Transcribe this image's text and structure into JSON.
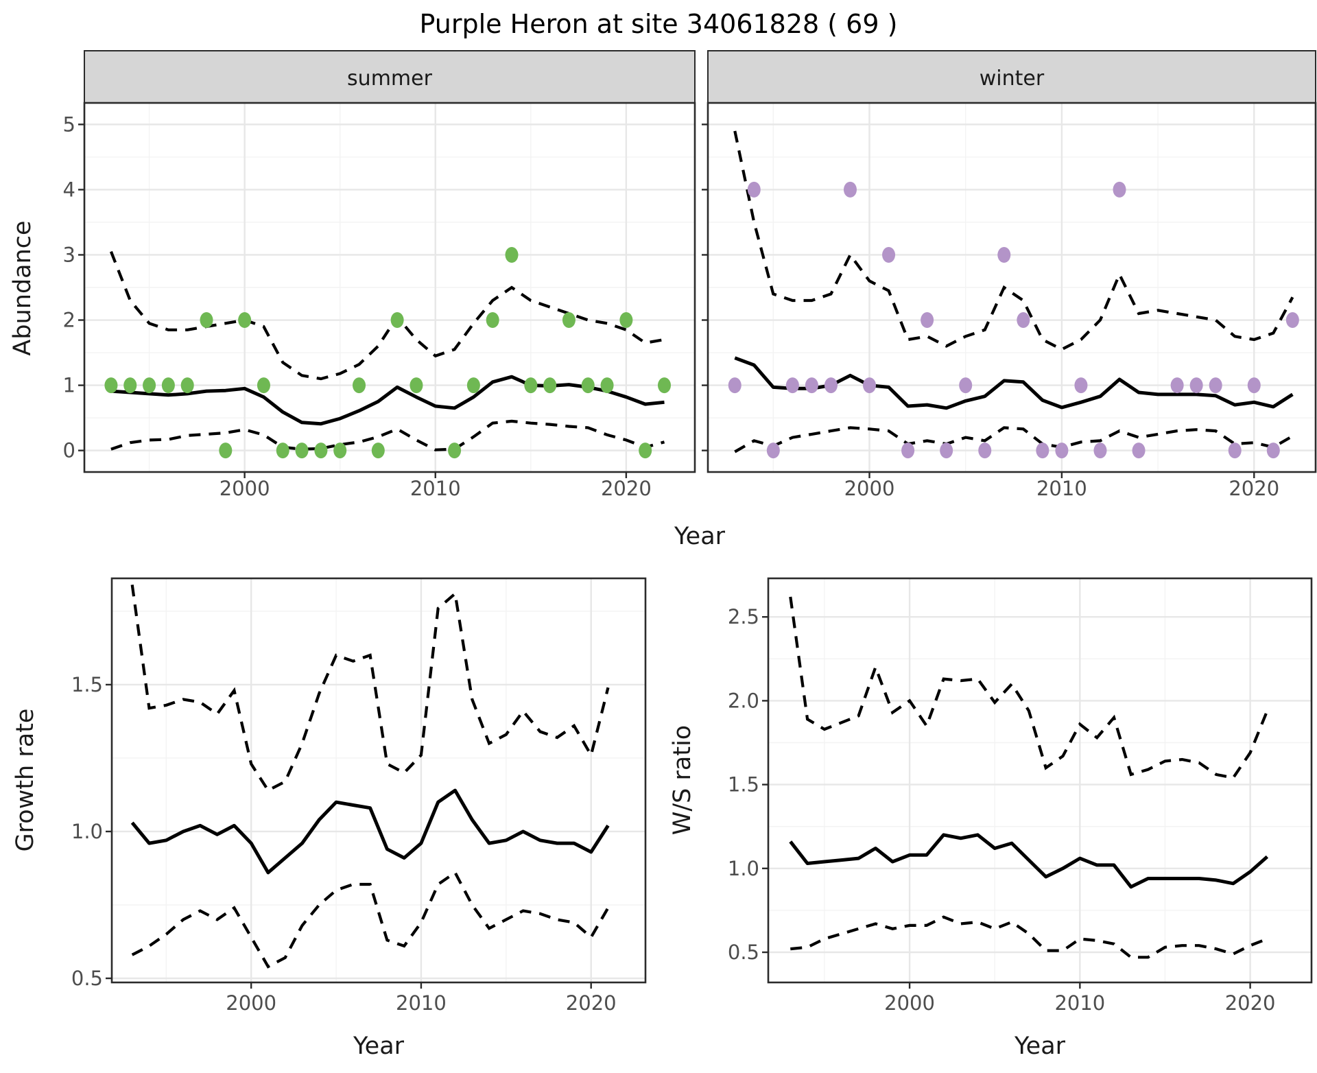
{
  "title": "Purple Heron at site 34061828 ( 69 )",
  "facets": [
    {
      "label": "summer"
    },
    {
      "label": "winter"
    }
  ],
  "axes": {
    "abundance_label": "Abundance",
    "year_label": "Year",
    "growth_label": "Growth rate",
    "ws_label": "W/S ratio"
  },
  "colors": {
    "summer_point": "#6fb853",
    "winter_point": "#b394c8",
    "line": "#000000",
    "grid_major": "#e7e7e7",
    "grid_minor": "#f3f3f3",
    "strip_bg": "#d6d6d6",
    "panel_border": "#2b2b2b",
    "axis_text": "#4d4d4d"
  },
  "chart_data": [
    {
      "id": "abundance_summer",
      "type": "scatter",
      "title": "summer",
      "xlabel": "Year",
      "ylabel": "Abundance",
      "xlim": [
        1991.6,
        2023.6
      ],
      "ylim": [
        -0.33,
        5.33
      ],
      "x_ticks": [
        2000,
        2010,
        2020
      ],
      "x_tick_labels": [
        "2000",
        "2010",
        "2020"
      ],
      "x_minor": [
        1995,
        2005,
        2015
      ],
      "y_ticks": [
        0,
        1,
        2,
        3,
        4,
        5
      ],
      "y_tick_labels": [
        "0",
        "1",
        "2",
        "3",
        "4",
        "5"
      ],
      "y_minor": [
        0.5,
        1.5,
        2.5,
        3.5,
        4.5
      ],
      "years": [
        1993,
        1994,
        1995,
        1996,
        1997,
        1998,
        1999,
        2000,
        2001,
        2002,
        2003,
        2004,
        2005,
        2006,
        2007,
        2008,
        2009,
        2010,
        2011,
        2012,
        2013,
        2014,
        2015,
        2016,
        2017,
        2018,
        2019,
        2020,
        2021,
        2022
      ],
      "mean": [
        0.91,
        0.89,
        0.87,
        0.85,
        0.87,
        0.91,
        0.92,
        0.95,
        0.82,
        0.59,
        0.43,
        0.41,
        0.49,
        0.61,
        0.75,
        0.97,
        0.82,
        0.68,
        0.65,
        0.82,
        1.05,
        1.13,
        1.0,
        0.99,
        1.01,
        0.97,
        0.91,
        0.82,
        0.71,
        0.74
      ],
      "upper": [
        3.05,
        2.3,
        1.95,
        1.85,
        1.85,
        1.9,
        1.95,
        2.0,
        1.9,
        1.35,
        1.15,
        1.1,
        1.18,
        1.32,
        1.6,
        2.05,
        1.7,
        1.45,
        1.55,
        1.95,
        2.3,
        2.5,
        2.3,
        2.2,
        2.1,
        2.0,
        1.95,
        1.85,
        1.65,
        1.7
      ],
      "lower": [
        0.02,
        0.12,
        0.16,
        0.17,
        0.23,
        0.25,
        0.27,
        0.32,
        0.24,
        0.05,
        0.02,
        0.03,
        0.09,
        0.13,
        0.21,
        0.33,
        0.16,
        0.01,
        0.02,
        0.21,
        0.42,
        0.45,
        0.42,
        0.4,
        0.37,
        0.35,
        0.24,
        0.16,
        0.05,
        0.13
      ],
      "obs_years": [
        1993,
        1994,
        1995,
        1996,
        1997,
        1998,
        1999,
        2000,
        2001,
        2002,
        2003,
        2004,
        2005,
        2006,
        2007,
        2008,
        2009,
        2011,
        2012,
        2013,
        2014,
        2015,
        2016,
        2017,
        2018,
        2019,
        2020,
        2021,
        2022
      ],
      "obs_values": [
        1,
        1,
        1,
        1,
        1,
        2,
        0,
        2,
        1,
        0,
        0,
        0,
        0,
        1,
        0,
        2,
        1,
        0,
        1,
        2,
        3,
        1,
        1,
        2,
        1,
        1,
        2,
        0,
        1
      ],
      "point_color": "#6fb853"
    },
    {
      "id": "abundance_winter",
      "type": "scatter",
      "title": "winter",
      "xlabel": "Year",
      "ylabel": "Abundance",
      "xlim": [
        1991.6,
        2023.2
      ],
      "ylim": [
        -0.33,
        5.33
      ],
      "x_ticks": [
        2000,
        2010,
        2020
      ],
      "x_tick_labels": [
        "2000",
        "2010",
        "2020"
      ],
      "x_minor": [
        1995,
        2005,
        2015
      ],
      "y_ticks": [
        0,
        1,
        2,
        3,
        4,
        5
      ],
      "y_tick_labels": [
        "0",
        "1",
        "2",
        "3",
        "4",
        "5"
      ],
      "y_minor": [
        0.5,
        1.5,
        2.5,
        3.5,
        4.5
      ],
      "years": [
        1993,
        1994,
        1995,
        1996,
        1997,
        1998,
        1999,
        2000,
        2001,
        2002,
        2003,
        2004,
        2005,
        2006,
        2007,
        2008,
        2009,
        2010,
        2011,
        2012,
        2013,
        2014,
        2015,
        2016,
        2017,
        2018,
        2019,
        2020,
        2021,
        2022
      ],
      "mean": [
        1.42,
        1.31,
        0.97,
        0.95,
        0.95,
        1.0,
        1.15,
        1.0,
        0.97,
        0.68,
        0.7,
        0.65,
        0.76,
        0.83,
        1.07,
        1.05,
        0.77,
        0.66,
        0.74,
        0.83,
        1.09,
        0.89,
        0.86,
        0.86,
        0.86,
        0.84,
        0.7,
        0.74,
        0.67,
        0.86
      ],
      "upper": [
        4.9,
        3.5,
        2.4,
        2.3,
        2.3,
        2.4,
        3.0,
        2.6,
        2.45,
        1.7,
        1.75,
        1.6,
        1.75,
        1.85,
        2.5,
        2.3,
        1.7,
        1.55,
        1.7,
        2.0,
        2.7,
        2.1,
        2.15,
        2.1,
        2.05,
        2.0,
        1.75,
        1.7,
        1.8,
        2.35
      ],
      "lower": [
        -0.02,
        0.15,
        0.07,
        0.2,
        0.25,
        0.3,
        0.35,
        0.33,
        0.3,
        0.1,
        0.15,
        0.1,
        0.2,
        0.15,
        0.35,
        0.33,
        0.1,
        0.05,
        0.13,
        0.15,
        0.3,
        0.2,
        0.25,
        0.3,
        0.32,
        0.3,
        0.1,
        0.12,
        0.05,
        0.22
      ],
      "obs_years": [
        1993,
        1994,
        1995,
        1996,
        1997,
        1998,
        1999,
        2000,
        2001,
        2002,
        2003,
        2004,
        2005,
        2006,
        2007,
        2008,
        2009,
        2010,
        2011,
        2012,
        2013,
        2014,
        2016,
        2017,
        2018,
        2019,
        2020,
        2021,
        2022
      ],
      "obs_values": [
        1,
        4,
        0,
        1,
        1,
        1,
        4,
        1,
        3,
        0,
        2,
        0,
        1,
        0,
        3,
        2,
        0,
        0,
        1,
        0,
        4,
        0,
        1,
        1,
        1,
        0,
        1,
        0,
        2
      ],
      "point_color": "#b394c8"
    },
    {
      "id": "growth_rate",
      "type": "line",
      "title": "",
      "xlabel": "Year",
      "ylabel": "Growth rate",
      "xlim": [
        1991.8,
        2023.2
      ],
      "ylim": [
        0.486,
        1.862
      ],
      "x_ticks": [
        2000,
        2010,
        2020
      ],
      "x_tick_labels": [
        "2000",
        "2010",
        "2020"
      ],
      "x_minor": [
        1995,
        2005,
        2015
      ],
      "y_ticks": [
        0.5,
        1.0,
        1.5
      ],
      "y_tick_labels": [
        "0.5",
        "1.0",
        "1.5"
      ],
      "y_minor": [
        0.75,
        1.25,
        1.75
      ],
      "years": [
        1993,
        1994,
        1995,
        1996,
        1997,
        1998,
        1999,
        2000,
        2001,
        2002,
        2003,
        2004,
        2005,
        2006,
        2007,
        2008,
        2009,
        2010,
        2011,
        2012,
        2013,
        2014,
        2015,
        2016,
        2017,
        2018,
        2019,
        2020,
        2021
      ],
      "mean": [
        1.03,
        0.96,
        0.97,
        1.0,
        1.02,
        0.99,
        1.02,
        0.96,
        0.86,
        0.91,
        0.96,
        1.04,
        1.1,
        1.09,
        1.08,
        0.94,
        0.91,
        0.96,
        1.1,
        1.14,
        1.04,
        0.96,
        0.97,
        1.0,
        0.97,
        0.96,
        0.96,
        0.93,
        1.02
      ],
      "upper": [
        1.84,
        1.42,
        1.43,
        1.45,
        1.44,
        1.4,
        1.48,
        1.23,
        1.14,
        1.17,
        1.3,
        1.47,
        1.6,
        1.58,
        1.6,
        1.23,
        1.2,
        1.26,
        1.76,
        1.81,
        1.45,
        1.3,
        1.33,
        1.41,
        1.34,
        1.32,
        1.36,
        1.26,
        1.49
      ],
      "lower": [
        0.58,
        0.61,
        0.65,
        0.7,
        0.73,
        0.7,
        0.74,
        0.64,
        0.54,
        0.57,
        0.68,
        0.75,
        0.8,
        0.82,
        0.82,
        0.63,
        0.61,
        0.69,
        0.82,
        0.86,
        0.75,
        0.67,
        0.7,
        0.73,
        0.72,
        0.7,
        0.69,
        0.64,
        0.74
      ]
    },
    {
      "id": "ws_ratio",
      "type": "line",
      "title": "",
      "xlabel": "Year",
      "ylabel": "W/S ratio",
      "xlim": [
        1991.7,
        2023.6
      ],
      "ylim": [
        0.32,
        2.73
      ],
      "x_ticks": [
        2000,
        2010,
        2020
      ],
      "x_tick_labels": [
        "2000",
        "2010",
        "2020"
      ],
      "x_minor": [
        1995,
        2005,
        2015
      ],
      "y_ticks": [
        0.5,
        1.0,
        1.5,
        2.0,
        2.5
      ],
      "y_tick_labels": [
        "0.5",
        "1.0",
        "1.5",
        "2.0",
        "2.5"
      ],
      "y_minor": [
        0.75,
        1.25,
        1.75,
        2.25
      ],
      "years": [
        1993,
        1994,
        1995,
        1996,
        1997,
        1998,
        1999,
        2000,
        2001,
        2002,
        2003,
        2004,
        2005,
        2006,
        2007,
        2008,
        2009,
        2010,
        2011,
        2012,
        2013,
        2014,
        2015,
        2016,
        2017,
        2018,
        2019,
        2020,
        2021
      ],
      "mean": [
        1.16,
        1.03,
        1.04,
        1.05,
        1.06,
        1.12,
        1.04,
        1.08,
        1.08,
        1.2,
        1.18,
        1.2,
        1.12,
        1.15,
        1.05,
        0.95,
        1.0,
        1.06,
        1.02,
        1.02,
        0.89,
        0.94,
        0.94,
        0.94,
        0.94,
        0.93,
        0.91,
        0.98,
        1.07
      ],
      "upper": [
        2.62,
        1.89,
        1.83,
        1.87,
        1.91,
        2.2,
        1.93,
        2.0,
        1.85,
        2.13,
        2.12,
        2.13,
        1.99,
        2.1,
        1.94,
        1.6,
        1.67,
        1.86,
        1.78,
        1.9,
        1.56,
        1.59,
        1.64,
        1.65,
        1.63,
        1.56,
        1.54,
        1.69,
        1.94
      ],
      "lower": [
        0.52,
        0.53,
        0.58,
        0.61,
        0.64,
        0.67,
        0.64,
        0.66,
        0.66,
        0.71,
        0.67,
        0.68,
        0.64,
        0.68,
        0.61,
        0.51,
        0.51,
        0.58,
        0.57,
        0.55,
        0.47,
        0.47,
        0.53,
        0.54,
        0.54,
        0.52,
        0.49,
        0.54,
        0.58
      ]
    }
  ]
}
